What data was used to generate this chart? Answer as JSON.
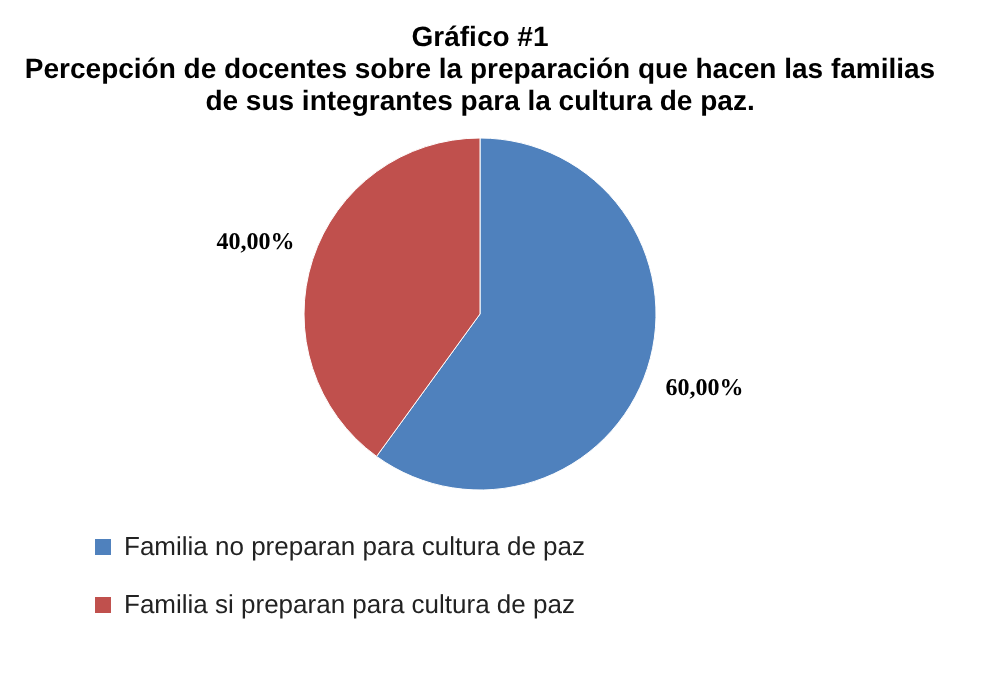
{
  "chart_data": {
    "type": "pie",
    "title": "Gráfico #1",
    "subtitle": "Percepción de docentes sobre la preparación que hacen las familias de sus integrantes para la cultura de paz.",
    "categories": [
      "Familia no preparan para cultura de paz",
      "Familia si preparan para cultura de paz"
    ],
    "values": [
      60,
      40
    ],
    "colors": [
      "#4f81bd",
      "#c0504d"
    ],
    "value_labels": [
      "60,00%",
      "40,00%"
    ],
    "legend": "bottom"
  }
}
